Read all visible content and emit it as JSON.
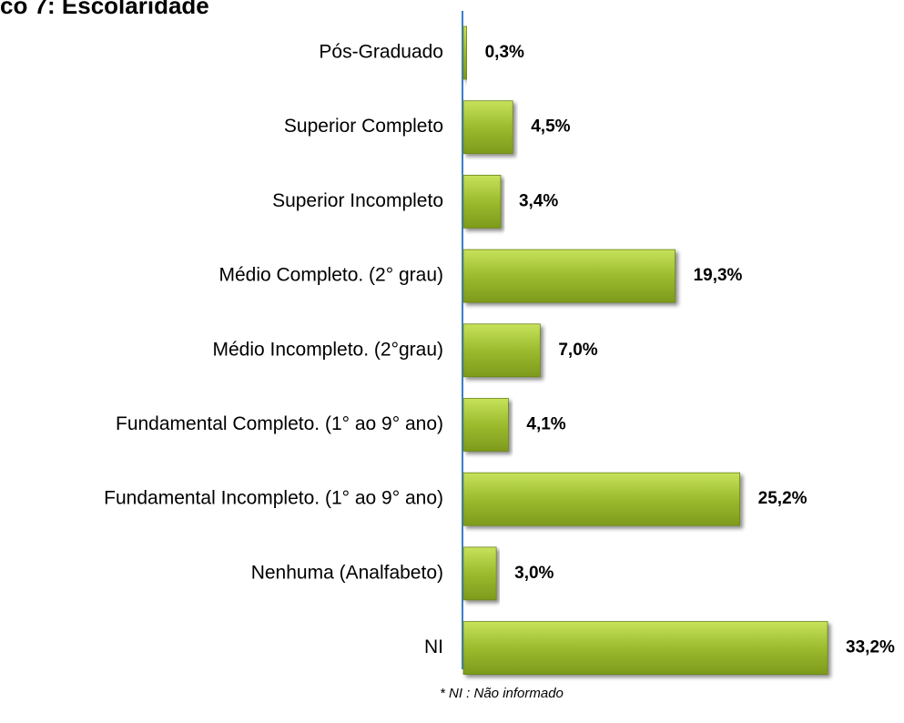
{
  "chart_data": {
    "type": "bar",
    "orientation": "horizontal",
    "title": "co 7: Escolaridade",
    "categories": [
      "Pós-Graduado",
      "Superior Completo",
      "Superior Incompleto",
      "Médio Completo. (2° grau)",
      "Médio Incompleto. (2°grau)",
      "Fundamental Completo. (1° ao 9° ano)",
      "Fundamental Incompleto. (1° ao 9° ano)",
      "Nenhuma (Analfabeto)",
      "NI"
    ],
    "values": [
      0.3,
      4.5,
      3.4,
      19.3,
      7.0,
      4.1,
      25.2,
      3.0,
      33.2
    ],
    "value_labels": [
      "0,3%",
      "4,5%",
      "3,4%",
      "19,3%",
      "7,0%",
      "4,1%",
      "25,2%",
      "3,0%",
      "33,2%"
    ],
    "color": "#9cbb2e",
    "annotation": "* NI : Não informado"
  }
}
